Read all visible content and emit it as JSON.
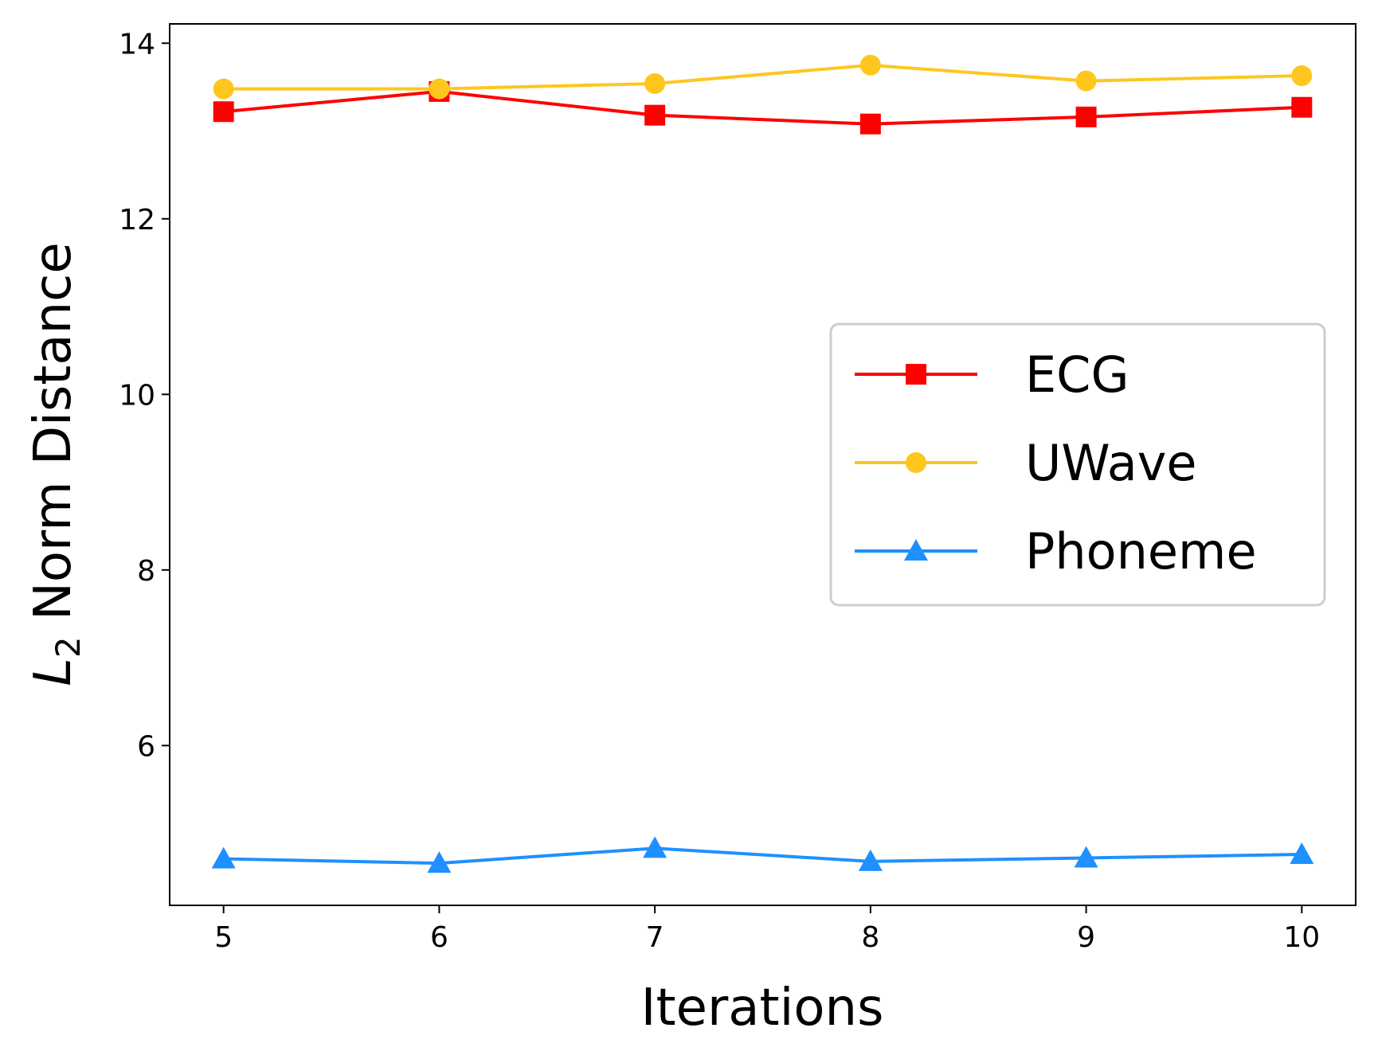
{
  "chart_data": {
    "type": "line",
    "x": [
      5,
      6,
      7,
      8,
      9,
      10
    ],
    "xticks": [
      5,
      6,
      7,
      8,
      9,
      10
    ],
    "yticks": [
      6,
      8,
      10,
      12,
      14
    ],
    "xlim": [
      4.75,
      10.25
    ],
    "ylim": [
      4.18,
      14.22
    ],
    "xlabel": "Iterations",
    "ylabel_main": "L",
    "ylabel_sub": "2",
    "ylabel_rest": " Norm Distance",
    "legend_position": "center-right",
    "series": [
      {
        "name": "ECG",
        "color": "#ff0000",
        "marker": "square",
        "values": [
          13.22,
          13.45,
          13.18,
          13.08,
          13.16,
          13.27
        ]
      },
      {
        "name": "UWave",
        "color": "#ffc61e",
        "marker": "circle",
        "values": [
          13.48,
          13.48,
          13.54,
          13.75,
          13.57,
          13.63
        ]
      },
      {
        "name": "Phoneme",
        "color": "#1e90ff",
        "marker": "triangle",
        "values": [
          4.71,
          4.66,
          4.83,
          4.68,
          4.72,
          4.76
        ]
      }
    ]
  }
}
